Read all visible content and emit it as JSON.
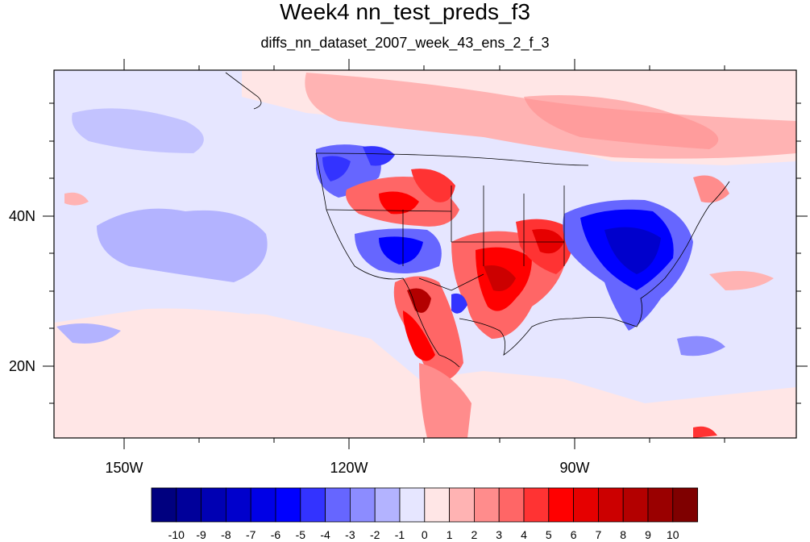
{
  "title": "Week4 nn_test_preds_f3",
  "subtitle": "diffs_nn_dataset_2007_week_43_ens_2_f_3",
  "map": {
    "x_axis_labels": [
      "150W",
      "120W",
      "90W"
    ],
    "y_axis_labels": [
      "40N",
      "20N"
    ],
    "background_color": "#e6e6ff"
  },
  "colorbar": {
    "labels": [
      "-10",
      "-9",
      "-8",
      "-7",
      "-6",
      "-5",
      "-4",
      "-3",
      "-2",
      "-1",
      "0",
      "1",
      "2",
      "3",
      "4",
      "5",
      "6",
      "7",
      "8",
      "9",
      "10"
    ],
    "colors": [
      "#00007f",
      "#00009a",
      "#0000b3",
      "#0000cc",
      "#0000e6",
      "#0000ff",
      "#3333ff",
      "#6666ff",
      "#8c8cff",
      "#b3b3ff",
      "#e6e6ff",
      "#ffe6e6",
      "#ffb3b3",
      "#ff8c8c",
      "#ff6666",
      "#ff3333",
      "#ff0000",
      "#e60000",
      "#cc0000",
      "#b30000",
      "#9a0000",
      "#7f0000"
    ]
  }
}
